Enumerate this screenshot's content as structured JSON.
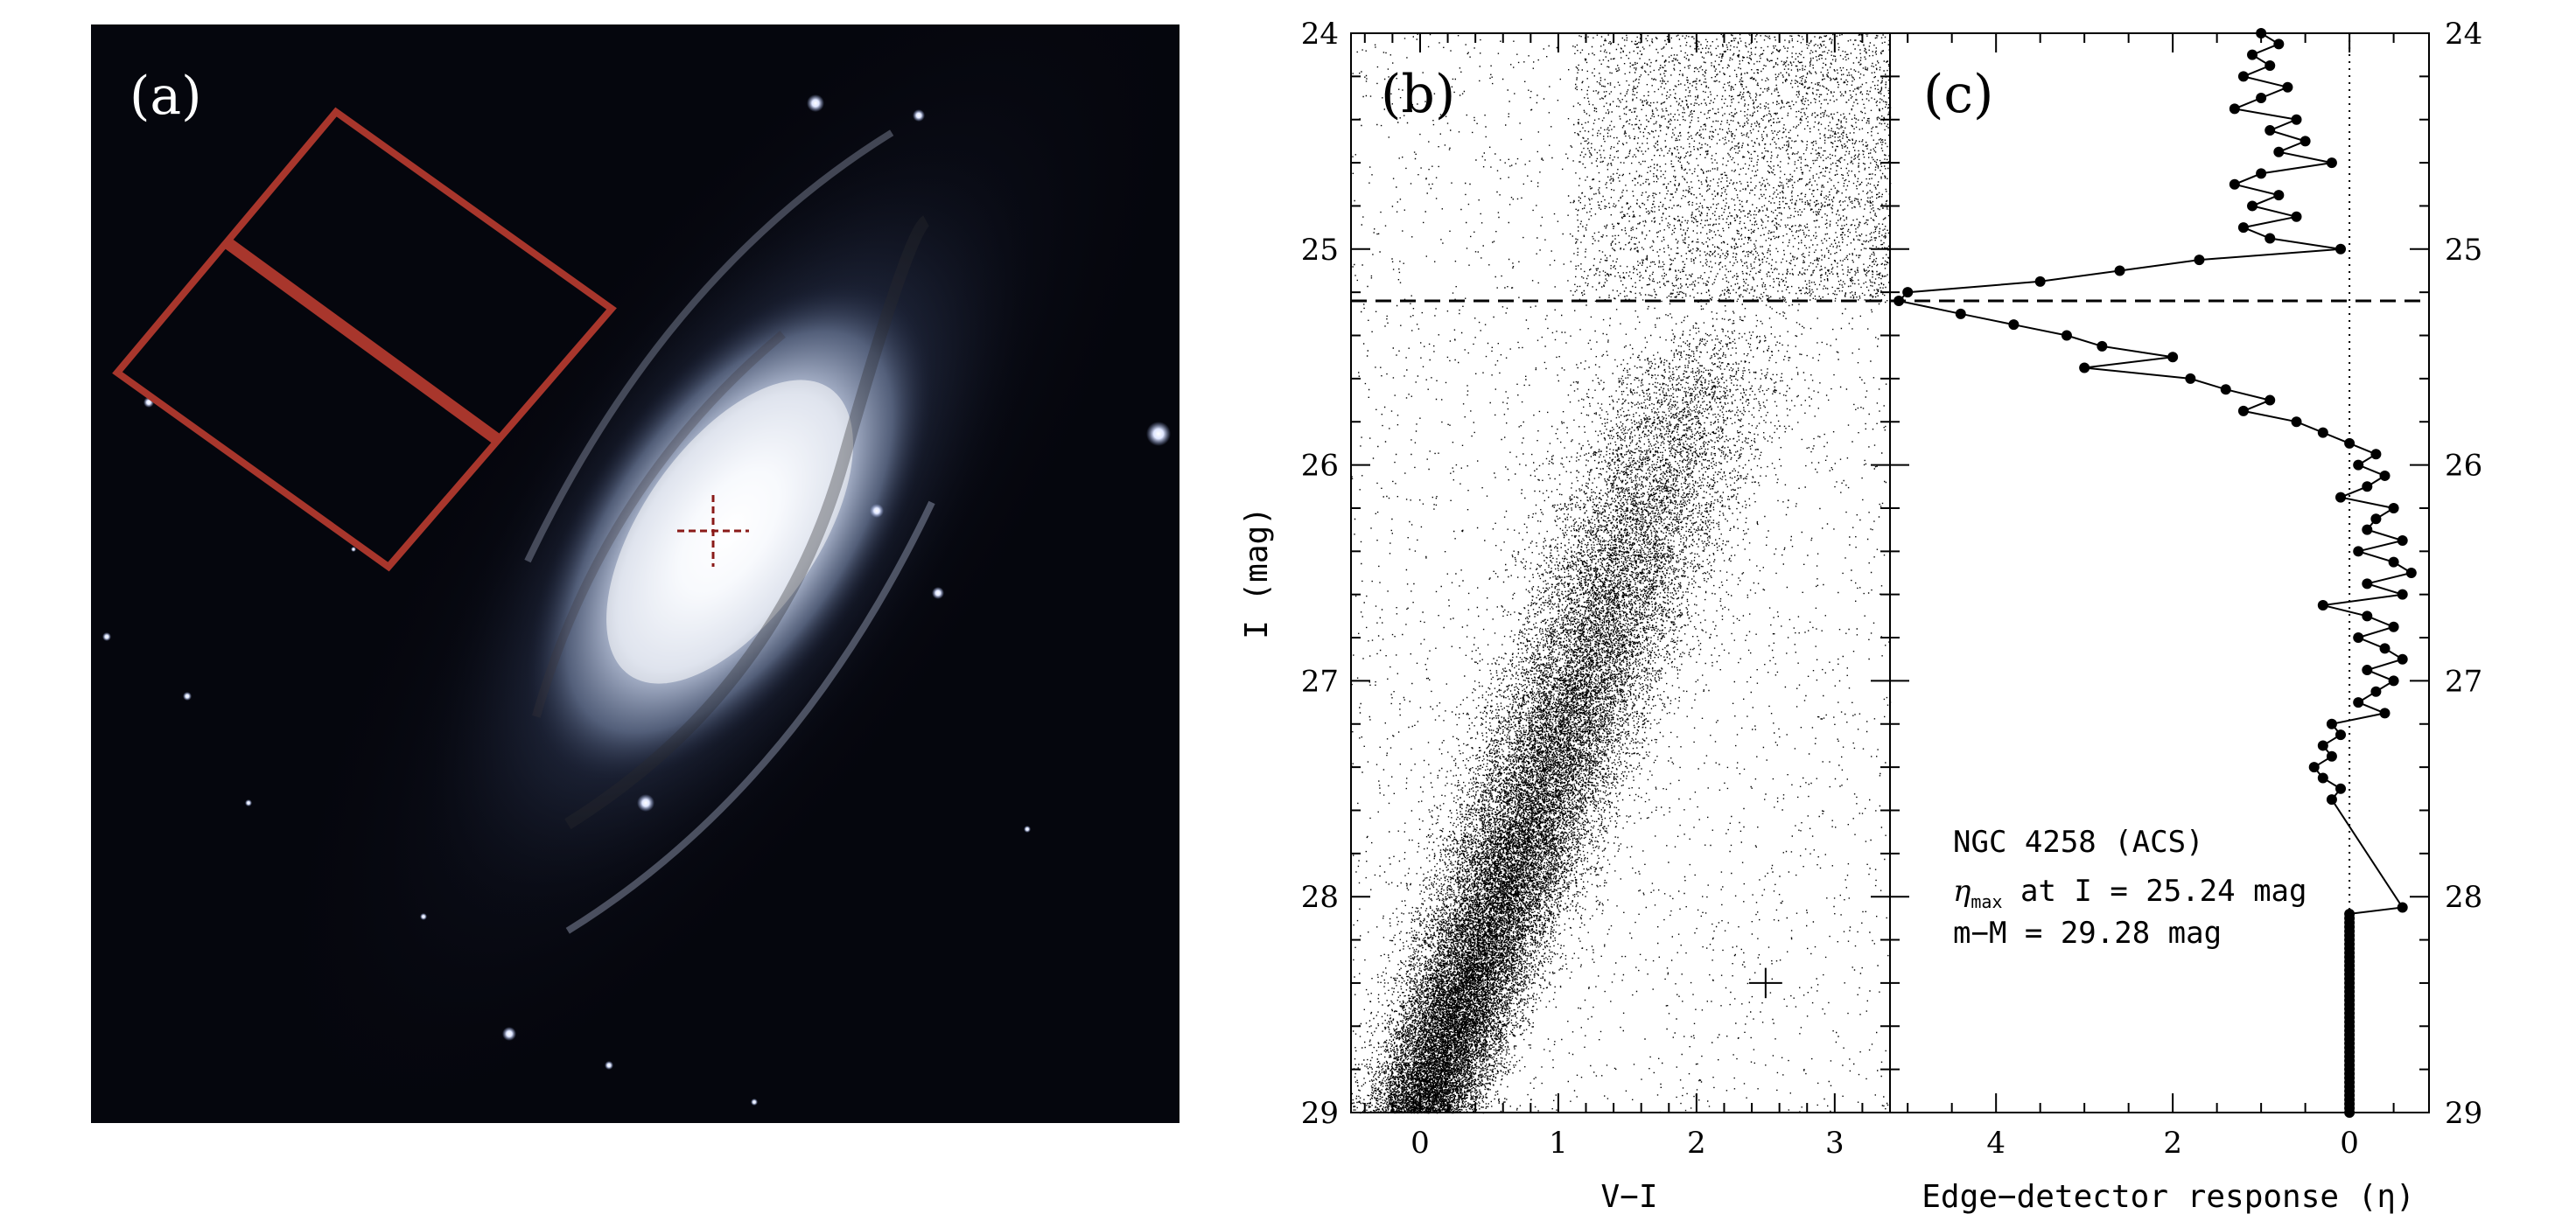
{
  "panel_a": {
    "label": "(a)",
    "colors": {
      "footprint": "#a8362c",
      "cross": "#8a1a18",
      "sky": "#05060d"
    }
  },
  "chart_data": [
    {
      "type": "scatter",
      "panel_label": "(b)",
      "xlabel": "V−I",
      "ylabel": "I (mag)",
      "xlim": [
        -0.5,
        3.4
      ],
      "ylim": [
        29,
        24
      ],
      "y_inverted": true,
      "xticks": [
        0,
        1,
        2,
        3
      ],
      "xtick_labels": [
        "0",
        "1",
        "2",
        "3"
      ],
      "yticks": [
        24,
        25,
        26,
        27,
        28,
        29
      ],
      "ytick_labels": [
        "24",
        "25",
        "26",
        "27",
        "28",
        "29"
      ],
      "density_model": {
        "rgb_branch": {
          "color_at_I29": 0.0,
          "color_slope_per_mag": -0.58,
          "color_spread": 0.32
        },
        "upper_agb_region": {
          "I_range": [
            24,
            25.24
          ],
          "color_range": [
            1.0,
            3.4
          ]
        },
        "n_points": 42000
      },
      "error_bar": {
        "x": 2.5,
        "y": 28.4,
        "x_err": 0.12,
        "y_err": 0.07
      },
      "trgb_line": {
        "I": 25.24,
        "style": "dashed"
      },
      "grid": false
    },
    {
      "type": "line",
      "panel_label": "(c)",
      "xlabel": "Edge−detector response (η)",
      "xlim": [
        5.2,
        -0.9
      ],
      "x_inverted": true,
      "xticks": [
        4,
        2,
        0
      ],
      "xtick_labels": [
        "4",
        "2",
        "0"
      ],
      "ylim": [
        29,
        24
      ],
      "yticks": [
        24,
        25,
        26,
        27,
        28,
        29
      ],
      "ytick_labels": [
        "24",
        "25",
        "26",
        "27",
        "28",
        "29"
      ],
      "series": [
        {
          "marker": "circle",
          "points": [
            [
              1.0,
              24.0
            ],
            [
              0.8,
              24.05
            ],
            [
              1.1,
              24.1
            ],
            [
              0.9,
              24.15
            ],
            [
              1.2,
              24.2
            ],
            [
              0.7,
              24.25
            ],
            [
              1.0,
              24.3
            ],
            [
              1.3,
              24.35
            ],
            [
              0.6,
              24.4
            ],
            [
              0.9,
              24.45
            ],
            [
              0.5,
              24.5
            ],
            [
              0.8,
              24.55
            ],
            [
              0.2,
              24.6
            ],
            [
              1.0,
              24.65
            ],
            [
              1.3,
              24.7
            ],
            [
              0.8,
              24.75
            ],
            [
              1.1,
              24.8
            ],
            [
              0.6,
              24.85
            ],
            [
              1.2,
              24.9
            ],
            [
              0.9,
              24.95
            ],
            [
              0.1,
              25.0
            ],
            [
              1.7,
              25.05
            ],
            [
              2.6,
              25.1
            ],
            [
              3.5,
              25.15
            ],
            [
              5.0,
              25.2
            ],
            [
              5.1,
              25.24
            ],
            [
              4.4,
              25.3
            ],
            [
              3.8,
              25.35
            ],
            [
              3.2,
              25.4
            ],
            [
              2.8,
              25.45
            ],
            [
              2.0,
              25.5
            ],
            [
              3.0,
              25.55
            ],
            [
              1.8,
              25.6
            ],
            [
              1.4,
              25.65
            ],
            [
              0.9,
              25.7
            ],
            [
              1.2,
              25.75
            ],
            [
              0.6,
              25.8
            ],
            [
              0.3,
              25.85
            ],
            [
              0.0,
              25.9
            ],
            [
              -0.3,
              25.95
            ],
            [
              -0.1,
              26.0
            ],
            [
              -0.4,
              26.05
            ],
            [
              -0.2,
              26.1
            ],
            [
              0.1,
              26.15
            ],
            [
              -0.5,
              26.2
            ],
            [
              -0.3,
              26.25
            ],
            [
              -0.2,
              26.3
            ],
            [
              -0.6,
              26.35
            ],
            [
              -0.1,
              26.4
            ],
            [
              -0.5,
              26.45
            ],
            [
              -0.7,
              26.5
            ],
            [
              -0.2,
              26.55
            ],
            [
              -0.6,
              26.6
            ],
            [
              0.3,
              26.65
            ],
            [
              -0.2,
              26.7
            ],
            [
              -0.5,
              26.75
            ],
            [
              -0.1,
              26.8
            ],
            [
              -0.4,
              26.85
            ],
            [
              -0.6,
              26.9
            ],
            [
              -0.2,
              26.95
            ],
            [
              -0.5,
              27.0
            ],
            [
              -0.3,
              27.05
            ],
            [
              -0.1,
              27.1
            ],
            [
              -0.4,
              27.15
            ],
            [
              0.2,
              27.2
            ],
            [
              0.1,
              27.25
            ],
            [
              0.3,
              27.3
            ],
            [
              0.2,
              27.35
            ],
            [
              0.4,
              27.4
            ],
            [
              0.3,
              27.45
            ],
            [
              0.1,
              27.5
            ],
            [
              0.2,
              27.55
            ],
            [
              -0.6,
              28.05
            ],
            [
              0.0,
              28.08
            ]
          ]
        }
      ],
      "zero_line": {
        "x": 0,
        "style": "dotted"
      },
      "trgb_line": {
        "I": 25.24,
        "style": "dashed"
      },
      "annotation": {
        "line1": "NGC 4258 (ACS)",
        "line2_symbol": "η",
        "line2_subscript": "max",
        "line2_text": " at I = 25.24 mag",
        "line3": "m−M = 29.28 mag"
      },
      "grid": false
    }
  ]
}
